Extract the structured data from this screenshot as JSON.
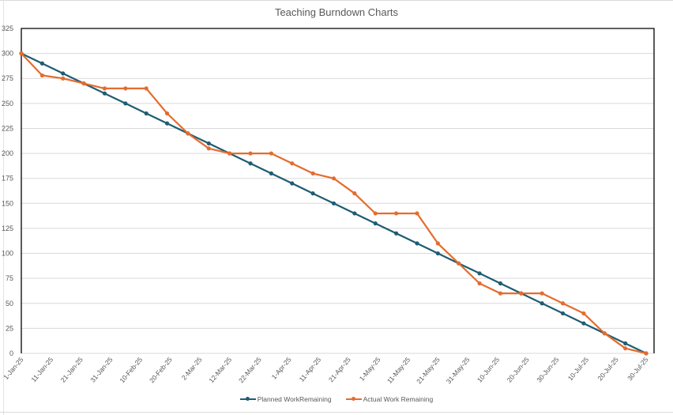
{
  "chart_data": {
    "type": "line",
    "title": "Teaching Burndown Charts",
    "xlabel": "",
    "ylabel": "",
    "ylim": [
      0,
      325
    ],
    "yticks": [
      0,
      25,
      50,
      75,
      100,
      125,
      150,
      175,
      200,
      225,
      250,
      275,
      300,
      325
    ],
    "x_tick_labels": [
      "1-Jan-25",
      "11-Jan-25",
      "21-Jan-25",
      "31-Jan-25",
      "10-Feb-25",
      "20-Feb-25",
      "2-Mar-25",
      "12-Mar-25",
      "22-Mar-25",
      "1-Apr-25",
      "11-Apr-25",
      "21-Apr-25",
      "1-May-25",
      "11-May-25",
      "21-May-25",
      "31-May-25",
      "10-Jun-25",
      "20-Jun-25",
      "30-Jun-25",
      "10-Jul-25",
      "20-Jul-25",
      "30-Jul-25"
    ],
    "x": [
      "1-Jan-25",
      "8-Jan-25",
      "15-Jan-25",
      "22-Jan-25",
      "29-Jan-25",
      "5-Feb-25",
      "12-Feb-25",
      "19-Feb-25",
      "26-Feb-25",
      "5-Mar-25",
      "12-Mar-25",
      "19-Mar-25",
      "26-Mar-25",
      "2-Apr-25",
      "9-Apr-25",
      "16-Apr-25",
      "23-Apr-25",
      "30-Apr-25",
      "7-May-25",
      "14-May-25",
      "21-May-25",
      "28-May-25",
      "4-Jun-25",
      "11-Jun-25",
      "18-Jun-25",
      "25-Jun-25",
      "2-Jul-25",
      "9-Jul-25",
      "16-Jul-25",
      "23-Jul-25",
      "30-Jul-25"
    ],
    "series": [
      {
        "name": "Planned WorkRemaining",
        "color": "#1f5c73",
        "values": [
          300,
          290,
          280,
          270,
          260,
          250,
          240,
          230,
          220,
          210,
          200,
          190,
          180,
          170,
          160,
          150,
          140,
          130,
          120,
          110,
          100,
          90,
          80,
          70,
          60,
          50,
          40,
          30,
          20,
          10,
          0
        ]
      },
      {
        "name": "Actual Work Remaining",
        "color": "#e46c2e",
        "values": [
          300,
          278,
          275,
          270,
          265,
          265,
          265,
          240,
          220,
          205,
          200,
          200,
          200,
          190,
          180,
          175,
          160,
          140,
          140,
          140,
          110,
          90,
          70,
          60,
          60,
          60,
          50,
          40,
          20,
          5,
          0
        ]
      }
    ],
    "grid": true,
    "legend_position": "bottom"
  },
  "legend": {
    "planned_label": "Planned WorkRemaining",
    "actual_label": "Actual Work Remaining"
  }
}
